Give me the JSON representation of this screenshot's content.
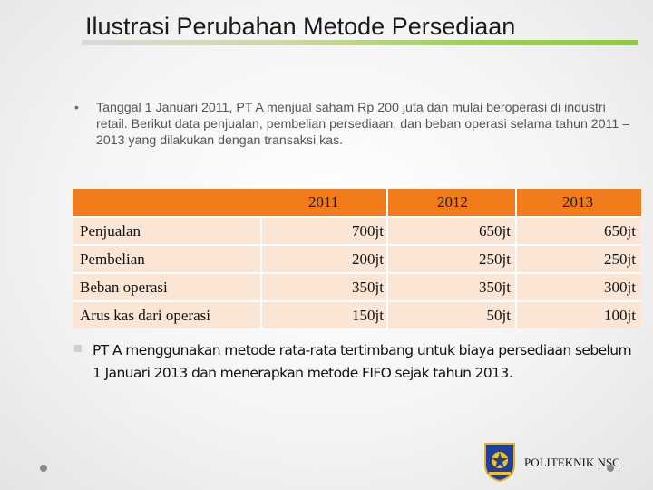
{
  "slide": {
    "title": "Ilustrasi Perubahan Metode Persediaan",
    "bullet1": "Tanggal 1 Januari 2011, PT A menjual saham Rp 200 juta dan mulai beroperasi di industri retail. Berikut data penjualan, pembelian persediaan, dan beban operasi selama tahun 2011 – 2013 yang dilakukan dengan transaksi kas.",
    "bullet2": "PT A menggunakan metode rata-rata tertimbang untuk biaya persediaan sebelum 1 Januari 2013 dan menerapkan metode FIFO sejak tahun 2013.",
    "footer": "POLITEKNIK NSC"
  },
  "table": {
    "headers": [
      "",
      "2011",
      "2012",
      "2013"
    ],
    "rows": [
      {
        "label": "Penjualan",
        "values": [
          "700jt",
          "650jt",
          "650jt"
        ]
      },
      {
        "label": "Pembelian",
        "values": [
          "200jt",
          "250jt",
          "250jt"
        ]
      },
      {
        "label": "Beban operasi",
        "values": [
          "350jt",
          "350jt",
          "300jt"
        ]
      },
      {
        "label": "Arus kas dari operasi",
        "values": [
          "150jt",
          "50jt",
          "100jt"
        ]
      }
    ]
  },
  "colors": {
    "header": "#f07c1b",
    "row": "#fbe6d5",
    "accent_line": "#8ccc3c"
  }
}
